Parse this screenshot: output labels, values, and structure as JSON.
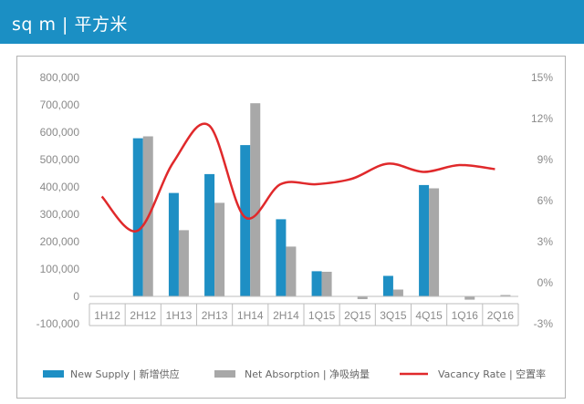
{
  "header": {
    "title": "sq m | 平方米"
  },
  "chart_data": {
    "type": "bar",
    "categories": [
      "1H12",
      "2H12",
      "1H13",
      "2H13",
      "1H14",
      "2H14",
      "1Q15",
      "2Q15",
      "3Q15",
      "4Q15",
      "1Q16",
      "2Q16"
    ],
    "series": [
      {
        "name": "New Supply | 新增供应",
        "type": "bar",
        "axis": "left",
        "color": "#1e8fc4",
        "values": [
          0,
          578000,
          378000,
          447000,
          553000,
          282000,
          92000,
          0,
          75000,
          407000,
          0,
          0
        ]
      },
      {
        "name": "Net Absorption | 净吸纳量",
        "type": "bar",
        "axis": "left",
        "color": "#a8a8a8",
        "values": [
          0,
          585000,
          242000,
          342000,
          706000,
          182000,
          90000,
          -10000,
          25000,
          395000,
          -12000,
          5000
        ]
      },
      {
        "name": "Vacancy Rate | 空置率",
        "type": "line",
        "axis": "right",
        "color": "#e0292b",
        "values": [
          6.3,
          3.8,
          8.8,
          11.5,
          4.8,
          7.2,
          7.2,
          7.6,
          8.7,
          8.1,
          8.6,
          8.3
        ]
      }
    ],
    "y_left": {
      "min": -100000,
      "max": 800000,
      "ticks": [
        800000,
        700000,
        600000,
        500000,
        400000,
        300000,
        200000,
        100000,
        0,
        -100000
      ],
      "tick_labels": [
        "800,000",
        "700,000",
        "600,000",
        "500,000",
        "400,000",
        "300,000",
        "200,000",
        "100,000",
        "0",
        "-100,000"
      ]
    },
    "y_right": {
      "min": -3,
      "max": 15,
      "ticks": [
        15,
        12,
        9,
        6,
        3,
        0,
        -3
      ],
      "tick_labels": [
        "15%",
        "12%",
        "9%",
        "6%",
        "3%",
        "0%",
        "-3%"
      ]
    },
    "grid": false,
    "legend_position": "bottom"
  }
}
